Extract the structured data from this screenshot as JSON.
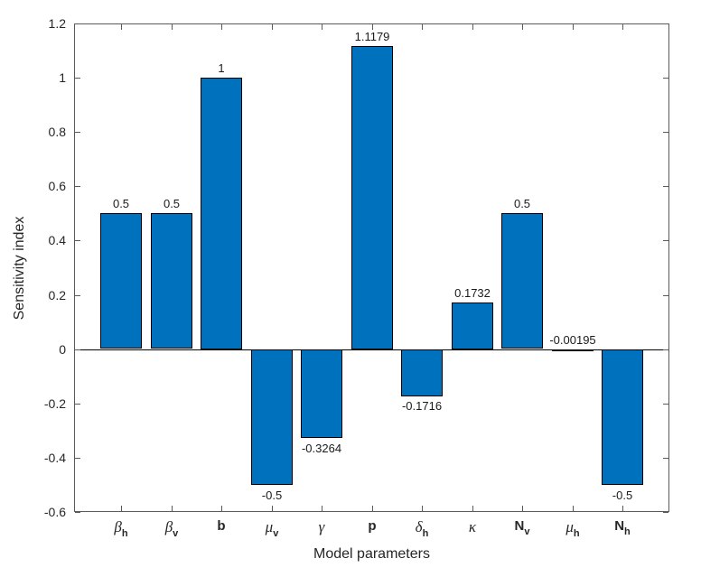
{
  "figure": {
    "background": "#ffffff"
  },
  "chart_data": {
    "type": "bar",
    "title": "",
    "xlabel": "Model parameters",
    "ylabel": "Sensitivity index",
    "categories": [
      "β_h",
      "β_v",
      "b",
      "μ_v",
      "γ",
      "p",
      "δ_h",
      "κ",
      "N_v",
      "μ_h",
      "N_h"
    ],
    "categories_rich": [
      {
        "base": "β",
        "sub": "h",
        "greek": true
      },
      {
        "base": "β",
        "sub": "v",
        "greek": true
      },
      {
        "base": "b",
        "sub": "",
        "greek": false
      },
      {
        "base": "μ",
        "sub": "v",
        "greek": true
      },
      {
        "base": "γ",
        "sub": "",
        "greek": true
      },
      {
        "base": "p",
        "sub": "",
        "greek": false
      },
      {
        "base": "δ",
        "sub": "h",
        "greek": true
      },
      {
        "base": "κ",
        "sub": "",
        "greek": true
      },
      {
        "base": "N",
        "sub": "v",
        "greek": false
      },
      {
        "base": "μ",
        "sub": "h",
        "greek": true
      },
      {
        "base": "N",
        "sub": "h",
        "greek": false
      }
    ],
    "values": [
      0.5,
      0.5,
      1,
      -0.5,
      -0.3264,
      1.1179,
      -0.1716,
      0.1732,
      0.5,
      -0.00195,
      -0.5
    ],
    "value_labels": [
      "0.5",
      "0.5",
      "1",
      "-0.5",
      "-0.3264",
      "1.1179",
      "-0.1716",
      "0.1732",
      "0.5",
      "-0.00195",
      "-0.5"
    ],
    "ylim": [
      -0.6,
      1.2
    ],
    "yticks": [
      1.2,
      1,
      0.8,
      0.6,
      0.4,
      0.2,
      0,
      -0.2,
      -0.4,
      -0.6
    ],
    "ytick_labels": [
      "1.2",
      "1",
      "0.8",
      "0.6",
      "0.4",
      "0.2",
      "0",
      "-0.2",
      "-0.4",
      "-0.6"
    ],
    "grid": false,
    "legend": null,
    "bar_color": "#0072BD",
    "bar_edge_color": "#000000",
    "axis_color": "#5a5a5a",
    "text_color": "#262626",
    "zero_line_color": "#000000"
  }
}
